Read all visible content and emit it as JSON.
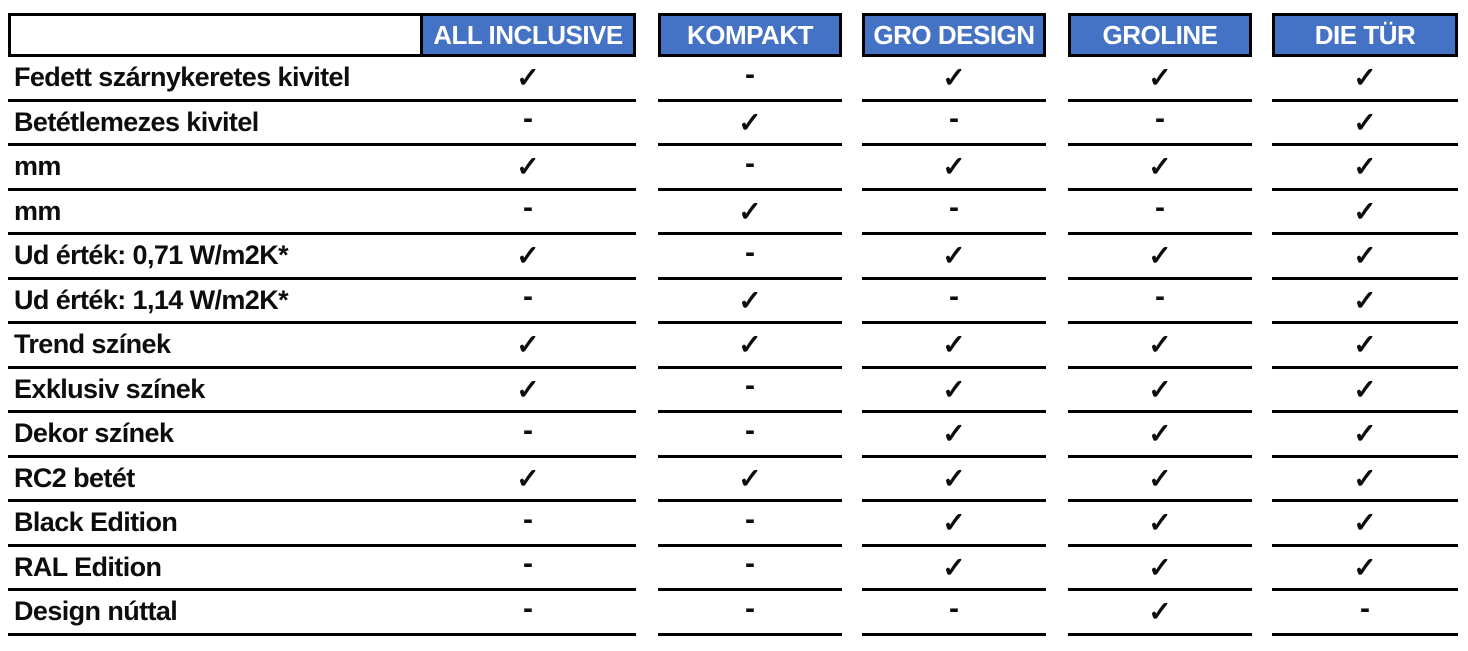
{
  "table": {
    "columns": [
      "ALL INCLUSIVE",
      "KOMPAKT",
      "GRO DESIGN",
      "GROLINE",
      "DIE TÜR"
    ],
    "corner_cell": "",
    "rows": [
      {
        "label": "Fedett szárnykeretes kivitel",
        "values": [
          "check",
          "dash",
          "check",
          "check",
          "check"
        ]
      },
      {
        "label": "Betétlemezes kivitel",
        "values": [
          "dash",
          "check",
          "dash",
          "dash",
          "check"
        ]
      },
      {
        "label": "mm",
        "values": [
          "check",
          "dash",
          "check",
          "check",
          "check"
        ]
      },
      {
        "label": "mm",
        "values": [
          "dash",
          "check",
          "dash",
          "dash",
          "check"
        ]
      },
      {
        "label": "Ud érték: 0,71 W/m2K*",
        "values": [
          "check",
          "dash",
          "check",
          "check",
          "check"
        ]
      },
      {
        "label": "Ud érték: 1,14 W/m2K*",
        "values": [
          "dash",
          "check",
          "dash",
          "dash",
          "check"
        ]
      },
      {
        "label": "Trend színek",
        "values": [
          "check",
          "check",
          "check",
          "check",
          "check"
        ]
      },
      {
        "label": "Exklusiv színek",
        "values": [
          "check",
          "dash",
          "check",
          "check",
          "check"
        ]
      },
      {
        "label": "Dekor színek",
        "values": [
          "dash",
          "dash",
          "check",
          "check",
          "check"
        ]
      },
      {
        "label": "RC2 betét",
        "values": [
          "check",
          "check",
          "check",
          "check",
          "check"
        ]
      },
      {
        "label": "Black Edition",
        "values": [
          "dash",
          "dash",
          "check",
          "check",
          "check"
        ]
      },
      {
        "label": "RAL Edition",
        "values": [
          "dash",
          "dash",
          "check",
          "check",
          "check"
        ]
      },
      {
        "label": "Design núttal",
        "values": [
          "dash",
          "dash",
          "dash",
          "check",
          "dash"
        ]
      }
    ],
    "symbols": {
      "check": "✓",
      "dash": "-"
    },
    "colors": {
      "header_bg": "#4472C4",
      "header_text": "#FFFFFF",
      "border": "#000000",
      "text": "#0D0D0D",
      "background": "#FFFFFF"
    }
  }
}
